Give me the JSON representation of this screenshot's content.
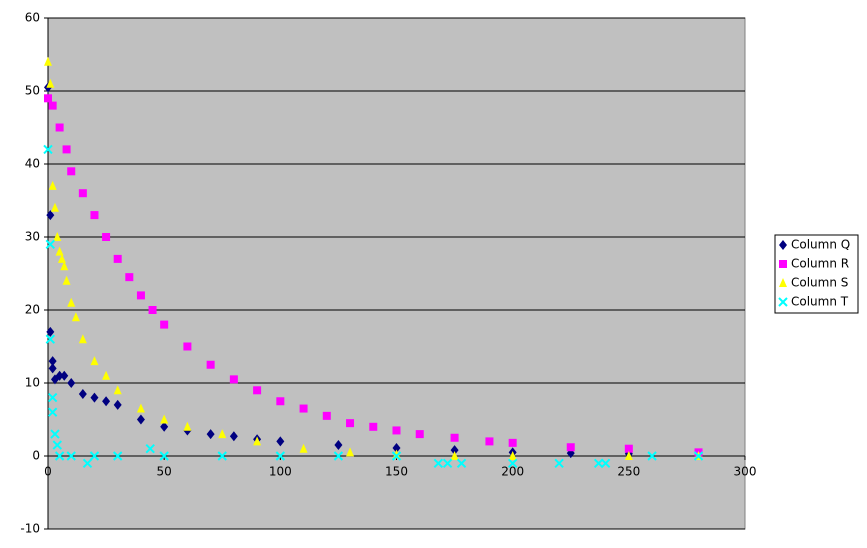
{
  "chart_data": {
    "type": "scatter",
    "xlim": [
      0,
      300
    ],
    "xticks": [
      0,
      50,
      100,
      150,
      200,
      250,
      300
    ],
    "ylim": [
      -10,
      60
    ],
    "yticks": [
      -10,
      0,
      10,
      20,
      30,
      40,
      50,
      60
    ],
    "grid": true,
    "background": "#c0c0c0",
    "legend": "right",
    "series": [
      {
        "name": "Column Q",
        "color": "#000080",
        "marker": "diamond",
        "x": [
          0,
          1,
          1,
          2,
          2,
          3,
          5,
          7,
          10,
          15,
          20,
          25,
          30,
          40,
          50,
          60,
          70,
          80,
          90,
          100,
          125,
          150,
          175,
          200,
          225,
          250,
          280
        ],
        "y": [
          50.5,
          33,
          17,
          13,
          12,
          10.5,
          11,
          11,
          10,
          8.5,
          8,
          7.5,
          7,
          5,
          4,
          3.5,
          3,
          2.7,
          2.3,
          2,
          1.5,
          1.1,
          0.8,
          0.5,
          0.4,
          0.3,
          0.2
        ]
      },
      {
        "name": "Column R",
        "color": "#ff00ff",
        "marker": "square",
        "x": [
          0,
          2,
          5,
          8,
          10,
          15,
          20,
          25,
          30,
          35,
          40,
          45,
          50,
          60,
          70,
          80,
          90,
          100,
          110,
          120,
          130,
          140,
          150,
          160,
          175,
          190,
          200,
          225,
          250,
          280
        ],
        "y": [
          49,
          48,
          45,
          42,
          39,
          36,
          33,
          30,
          27,
          24.5,
          22,
          20,
          18,
          15,
          12.5,
          10.5,
          9,
          7.5,
          6.5,
          5.5,
          4.5,
          4,
          3.5,
          3,
          2.5,
          2,
          1.8,
          1.2,
          1,
          0.5
        ]
      },
      {
        "name": "Column S",
        "color": "#ffff00",
        "marker": "triangle",
        "x": [
          0,
          1,
          2,
          3,
          4,
          5,
          6,
          7,
          8,
          10,
          12,
          15,
          20,
          25,
          30,
          40,
          50,
          60,
          75,
          90,
          110,
          130,
          150,
          175,
          200,
          250,
          280
        ],
        "y": [
          54,
          51,
          37,
          34,
          30,
          28,
          27,
          26,
          24,
          21,
          19,
          16,
          13,
          11,
          9,
          6.5,
          5,
          4,
          3,
          2,
          1,
          0.5,
          0.2,
          0,
          0,
          0,
          0
        ]
      },
      {
        "name": "Column T",
        "color": "#00ffff",
        "marker": "x",
        "x": [
          0,
          1,
          1,
          2,
          2,
          3,
          4,
          5,
          10,
          17,
          20,
          30,
          44,
          50,
          75,
          100,
          125,
          150,
          168,
          172,
          178,
          200,
          220,
          237,
          240,
          260,
          280
        ],
        "y": [
          42,
          29,
          16,
          8,
          6,
          3,
          1.5,
          0,
          0,
          -1,
          0,
          0,
          1,
          0,
          0,
          0,
          0,
          0,
          -1,
          -1,
          -1,
          -1,
          -1,
          -1,
          -1,
          0,
          0
        ]
      }
    ]
  }
}
